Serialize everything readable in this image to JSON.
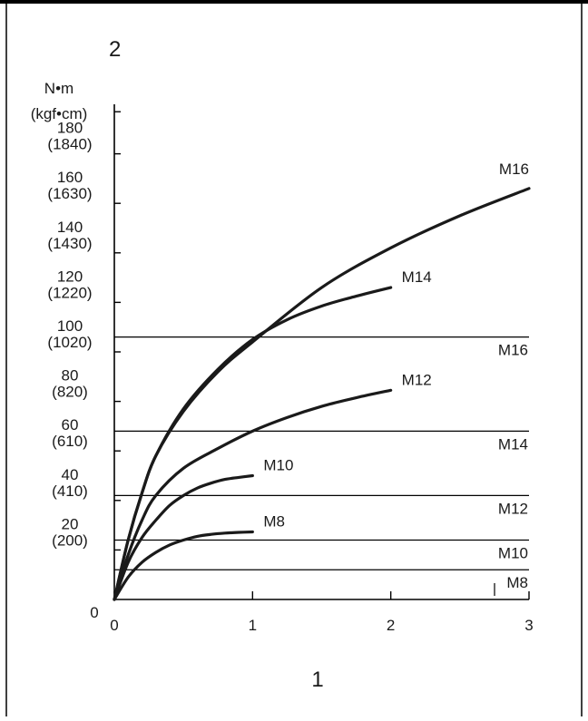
{
  "chart_data": {
    "type": "line",
    "corner_label": "2",
    "bottom_label": "1",
    "y_unit_line1": "N•m",
    "y_unit_line2": "(kgf•cm)",
    "xlim": [
      0,
      3
    ],
    "ylim": [
      0,
      200
    ],
    "x_ticks": [
      {
        "value": 0,
        "label": "0"
      },
      {
        "value": 1,
        "label": "1"
      },
      {
        "value": 2,
        "label": "2"
      },
      {
        "value": 3,
        "label": "3"
      }
    ],
    "y_zero_label": "0",
    "y_ticks": [
      {
        "value": 20,
        "label": "20",
        "sub": "(200)"
      },
      {
        "value": 40,
        "label": "40",
        "sub": "(410)"
      },
      {
        "value": 60,
        "label": "60",
        "sub": "(610)"
      },
      {
        "value": 80,
        "label": "80",
        "sub": "(820)"
      },
      {
        "value": 100,
        "label": "100",
        "sub": "(1020)"
      },
      {
        "value": 120,
        "label": "120",
        "sub": "(1220)"
      },
      {
        "value": 140,
        "label": "140",
        "sub": "(1430)"
      },
      {
        "value": 160,
        "label": "160",
        "sub": "(1630)"
      },
      {
        "value": 180,
        "label": "180",
        "sub": "(1840)"
      },
      {
        "value": 197,
        "label": "",
        "sub": ""
      }
    ],
    "series": [
      {
        "name": "M8",
        "x": [
          0,
          0.1,
          0.2,
          0.3,
          0.4,
          0.5,
          0.6,
          0.7,
          0.8,
          0.9,
          1.0
        ],
        "y": [
          0,
          9,
          15,
          19,
          22,
          24,
          25.5,
          26.3,
          26.8,
          27.1,
          27.3
        ]
      },
      {
        "name": "M10",
        "x": [
          0,
          0.1,
          0.2,
          0.3,
          0.4,
          0.5,
          0.6,
          0.7,
          0.8,
          0.9,
          1.0
        ],
        "y": [
          0,
          15,
          25,
          32,
          38,
          42,
          45,
          47,
          48.5,
          49.3,
          50
        ]
      },
      {
        "name": "M12",
        "x": [
          0,
          0.1,
          0.2,
          0.3,
          0.5,
          0.75,
          1.0,
          1.25,
          1.5,
          1.75,
          2.0
        ],
        "y": [
          0,
          18,
          32,
          42,
          53,
          61,
          68,
          73.5,
          78,
          81.5,
          84.5
        ]
      },
      {
        "name": "M14",
        "x": [
          0,
          0.1,
          0.2,
          0.3,
          0.5,
          0.75,
          1.0,
          1.25,
          1.5,
          1.75,
          2.0
        ],
        "y": [
          0,
          24,
          43,
          58,
          77,
          93,
          105,
          113,
          118.5,
          122.5,
          126
        ]
      },
      {
        "name": "M16",
        "x": [
          0,
          0.1,
          0.2,
          0.3,
          0.5,
          0.75,
          1.0,
          1.5,
          2.0,
          2.5,
          3.0
        ],
        "y": [
          0,
          24,
          43,
          58,
          76,
          92,
          104,
          126,
          142,
          155,
          166
        ]
      }
    ],
    "reference_lines": [
      {
        "name": "M8",
        "y": 12
      },
      {
        "name": "M10",
        "y": 24
      },
      {
        "name": "M12",
        "y": 42
      },
      {
        "name": "M14",
        "y": 68
      },
      {
        "name": "M16",
        "y": 106
      }
    ],
    "grid": false,
    "legend": "none"
  }
}
